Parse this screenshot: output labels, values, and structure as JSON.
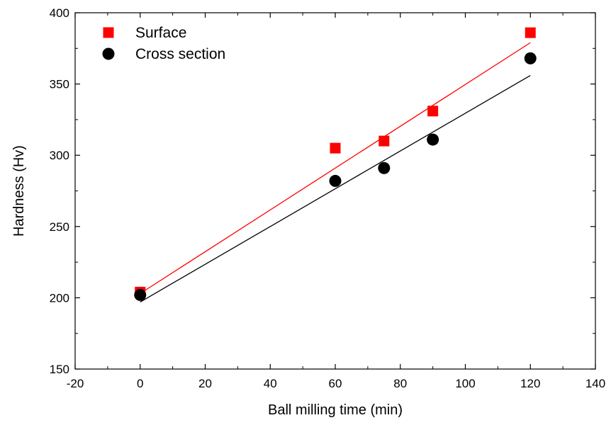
{
  "chart_data": {
    "type": "scatter",
    "title": "",
    "xlabel": "Ball milling time (min)",
    "ylabel": "Hardness (Hv)",
    "xlim": [
      -20,
      140
    ],
    "ylim": [
      150,
      400
    ],
    "xticks": [
      -20,
      0,
      20,
      40,
      60,
      80,
      100,
      120,
      140
    ],
    "yticks": [
      150,
      200,
      250,
      300,
      350,
      400
    ],
    "xtick_labels": [
      "-20",
      "0",
      "20",
      "40",
      "60",
      "80",
      "100",
      "120",
      "140"
    ],
    "ytick_labels": [
      "150",
      "200",
      "250",
      "300",
      "350",
      "400"
    ],
    "grid": false,
    "legend_position": "top-left",
    "series": [
      {
        "name": "Surface",
        "marker": "square",
        "color": "#ff0000",
        "x": [
          0,
          60,
          75,
          90,
          120
        ],
        "y": [
          204,
          305,
          310,
          331,
          386
        ],
        "fit_line": {
          "x": [
            0,
            120
          ],
          "y": [
            203,
            379
          ],
          "color": "#ff0000"
        }
      },
      {
        "name": "Cross section",
        "marker": "circle",
        "color": "#000000",
        "x": [
          0,
          60,
          75,
          90,
          120
        ],
        "y": [
          202,
          282,
          291,
          311,
          368
        ],
        "fit_line": {
          "x": [
            0,
            120
          ],
          "y": [
            197,
            356
          ],
          "color": "#000000"
        }
      }
    ]
  }
}
